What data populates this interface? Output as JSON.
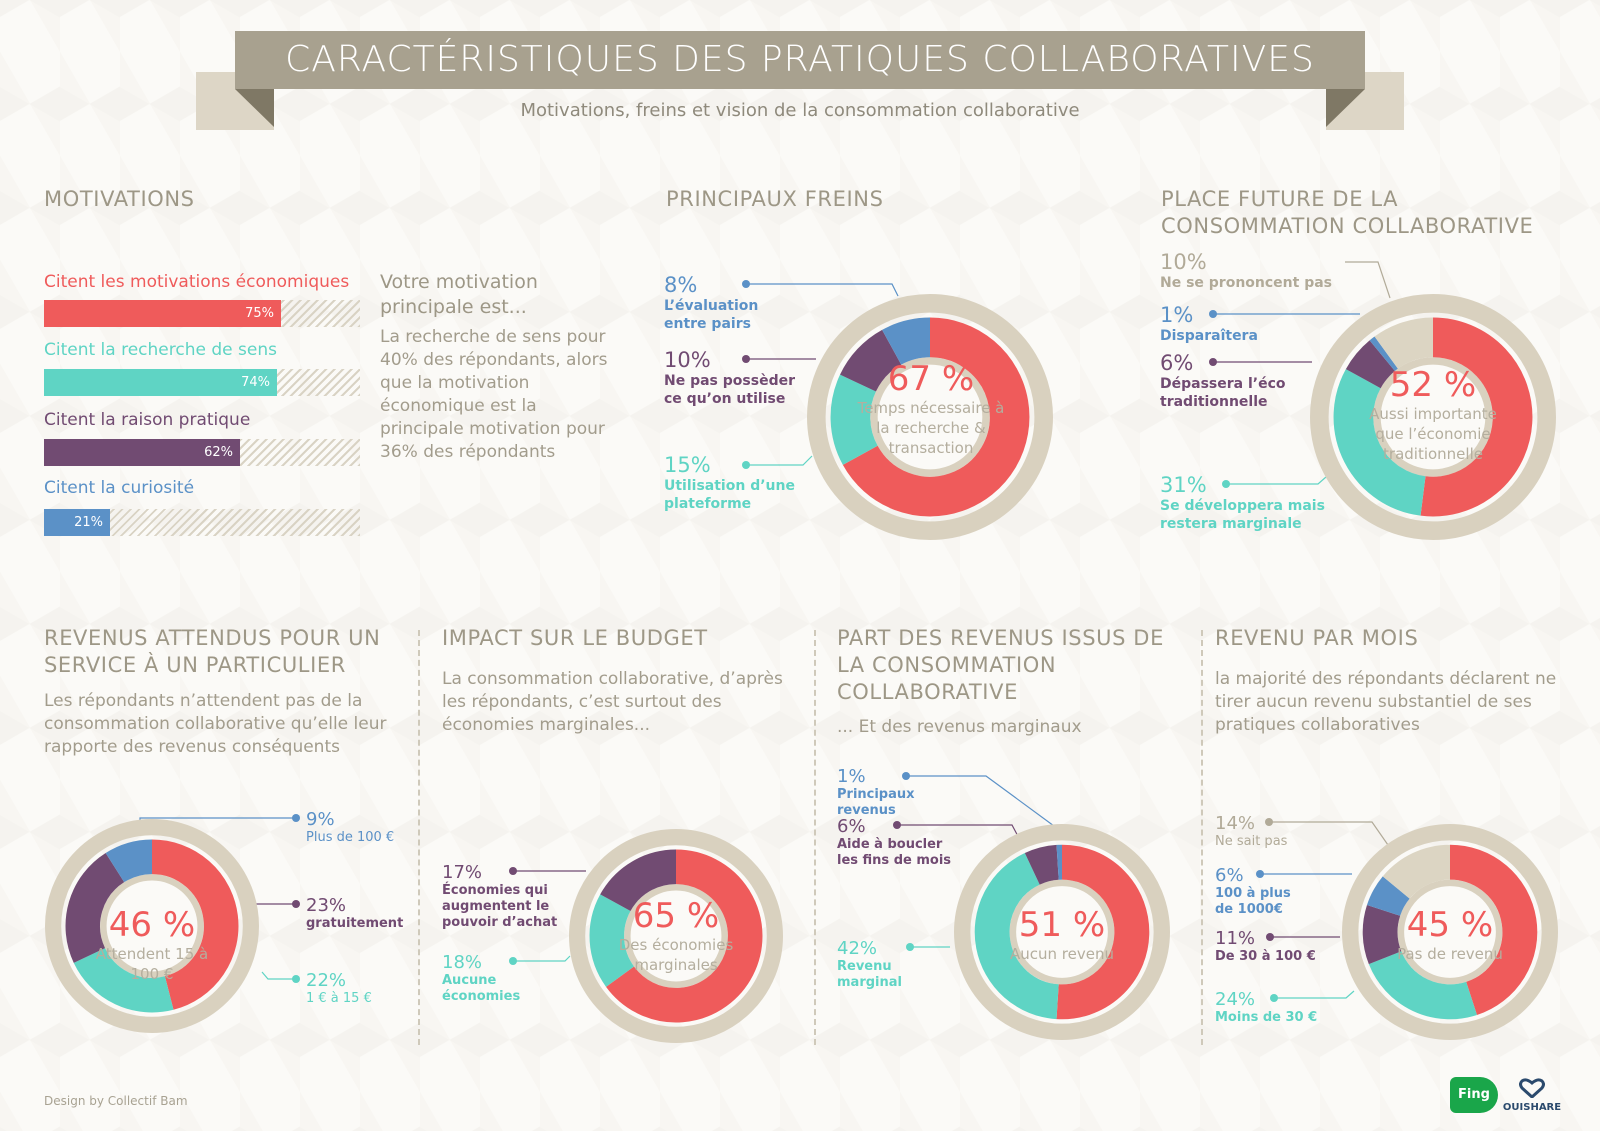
{
  "header": {
    "title": "CARACTÉRISTIQUES DES PRATIQUES COLLABORATIVES",
    "subtitle": "Motivations, freins et vision de la consommation collaborative"
  },
  "motivations": {
    "heading": "MOTIVATIONS",
    "bars": [
      {
        "label": "Citent les motivations économiques",
        "value": 75,
        "text": "75%",
        "color": "#ef5b5b"
      },
      {
        "label": "Citent la recherche de sens",
        "value": 74,
        "text": "74%",
        "color": "#5fd4c4"
      },
      {
        "label": "Citent la raison pratique",
        "value": 62,
        "text": "62%",
        "color": "#714b72"
      },
      {
        "label": "Citent la curiosité",
        "value": 21,
        "text": "21%",
        "color": "#5b91c7"
      }
    ],
    "question": "Votre motivation principale est...",
    "answer": "La recherche de sens pour 40% des répondants, alors que la motivation économique est la principale motivation pour 36% des répondants"
  },
  "freins": {
    "heading": "PRINCIPAUX FREINS",
    "labels": [
      {
        "value": "8%",
        "text": "L’évaluation entre pairs"
      },
      {
        "value": "10%",
        "text": "Ne pas possèder ce qu’on utilise"
      },
      {
        "value": "15%",
        "text": "Utilisation d’une plateforme"
      }
    ],
    "center_value": "67 %",
    "center_caption": "Temps nécessaire à la recherche & transaction"
  },
  "future": {
    "heading": "PLACE FUTURE DE LA CONSOMMATION COLLABORATIVE",
    "labels": [
      {
        "value": "10%",
        "text": "Ne se prononcent pas"
      },
      {
        "value": "1%",
        "text": "Disparaîtera"
      },
      {
        "value": "6%",
        "text": "Dépassera l’éco traditionnelle"
      },
      {
        "value": "31%",
        "text": "Se développera mais restera marginale"
      }
    ],
    "center_value": "52 %",
    "center_caption": "Aussi importante que l’économie traditionnelle"
  },
  "revenus_attendus": {
    "heading": "REVENUS ATTENDUS POUR UN SERVICE À UN PARTICULIER",
    "text": "Les répondants n’attendent pas de la consommation collaborative qu’elle leur rapporte des revenus conséquents",
    "labels": [
      {
        "value": "9%",
        "text": "Plus de 100 €"
      },
      {
        "value": "23%",
        "text": "gratuitement"
      },
      {
        "value": "22%",
        "text": "1 € à 15 €"
      }
    ],
    "center_value": "46 %",
    "center_caption": "Attendent 15 à 100 €"
  },
  "budget": {
    "heading": "IMPACT SUR LE BUDGET",
    "text": "La consommation collaborative, d’après les répondants, c’est surtout des économies marginales...",
    "labels": [
      {
        "value": "17%",
        "text": "Économies qui augmentent le pouvoir d’achat"
      },
      {
        "value": "18%",
        "text": "Aucune économies"
      }
    ],
    "center_value": "65 %",
    "center_caption": "Des économies marginales"
  },
  "part_revenus": {
    "heading": "PART DES REVENUS ISSUS DE LA CONSOMMATION COLLABORATIVE",
    "text": "... Et des revenus marginaux",
    "labels": [
      {
        "value": "1%",
        "text": "Principaux revenus"
      },
      {
        "value": "6%",
        "text": "Aide à boucler les fins de mois"
      },
      {
        "value": "42%",
        "text": "Revenu marginal"
      }
    ],
    "center_value": "51 %",
    "center_caption": "Aucun revenu"
  },
  "revenu_mois": {
    "heading": "REVENU PAR MOIS",
    "text": "la majorité des répondants déclarent ne tirer aucun revenu substantiel de ses pratiques collaboratives",
    "labels": [
      {
        "value": "14%",
        "text": "Ne sait pas"
      },
      {
        "value": "6%",
        "text": "100 à plus de 1000€"
      },
      {
        "value": "11%",
        "text": "De 30 à 100 €"
      },
      {
        "value": "24%",
        "text": "Moins de 30 €"
      }
    ],
    "center_value": "45 %",
    "center_caption": "Pas de revenu"
  },
  "footer": {
    "credit": "Design by Collectif Bam",
    "logo1": "Fing",
    "logo2": "OUISHARE"
  },
  "chart_data": [
    {
      "type": "pie",
      "title": "PRINCIPAUX FREINS",
      "categories": [
        "Temps nécessaire à la recherche & transaction",
        "Utilisation d’une plateforme",
        "Ne pas possèder ce qu’on utilise",
        "L’évaluation entre pairs"
      ],
      "values": [
        67,
        15,
        10,
        8
      ],
      "colors": [
        "#ef5b5b",
        "#5fd4c4",
        "#714b72",
        "#5b91c7"
      ]
    },
    {
      "type": "pie",
      "title": "PLACE FUTURE DE LA CONSOMMATION COLLABORATIVE",
      "categories": [
        "Aussi importante que l’économie traditionnelle",
        "Se développera mais restera marginale",
        "Dépassera l’éco traditionnelle",
        "Disparaîtera",
        "Ne se prononcent pas"
      ],
      "values": [
        52,
        31,
        6,
        1,
        10
      ],
      "colors": [
        "#ef5b5b",
        "#5fd4c4",
        "#714b72",
        "#5b91c7",
        "#dcd5c3"
      ]
    },
    {
      "type": "pie",
      "title": "REVENUS ATTENDUS POUR UN SERVICE À UN PARTICULIER",
      "categories": [
        "Attendent 15 à 100 €",
        "1 € à 15 €",
        "gratuitement",
        "Plus de 100 €"
      ],
      "values": [
        46,
        22,
        23,
        9
      ],
      "colors": [
        "#ef5b5b",
        "#5fd4c4",
        "#714b72",
        "#5b91c7"
      ]
    },
    {
      "type": "pie",
      "title": "IMPACT SUR LE BUDGET",
      "categories": [
        "Des économies marginales",
        "Aucune économies",
        "Économies qui augmentent le pouvoir d’achat"
      ],
      "values": [
        65,
        18,
        17
      ],
      "colors": [
        "#ef5b5b",
        "#5fd4c4",
        "#714b72"
      ]
    },
    {
      "type": "pie",
      "title": "PART DES REVENUS ISSUS DE LA CONSOMMATION COLLABORATIVE",
      "categories": [
        "Aucun revenu",
        "Revenu marginal",
        "Aide à boucler les fins de mois",
        "Principaux revenus"
      ],
      "values": [
        51,
        42,
        6,
        1
      ],
      "colors": [
        "#ef5b5b",
        "#5fd4c4",
        "#714b72",
        "#5b91c7"
      ]
    },
    {
      "type": "pie",
      "title": "REVENU PAR MOIS",
      "categories": [
        "Pas de revenu",
        "Moins de 30 €",
        "De 30 à 100 €",
        "100 à plus de 1000€",
        "Ne sait pas"
      ],
      "values": [
        45,
        24,
        11,
        6,
        14
      ],
      "colors": [
        "#ef5b5b",
        "#5fd4c4",
        "#714b72",
        "#5b91c7",
        "#dcd5c3"
      ]
    },
    {
      "type": "bar",
      "title": "MOTIVATIONS",
      "categories": [
        "Citent les motivations économiques",
        "Citent la recherche de sens",
        "Citent la raison pratique",
        "Citent la curiosité"
      ],
      "values": [
        75,
        74,
        62,
        21
      ],
      "ylim": [
        0,
        100
      ]
    }
  ]
}
